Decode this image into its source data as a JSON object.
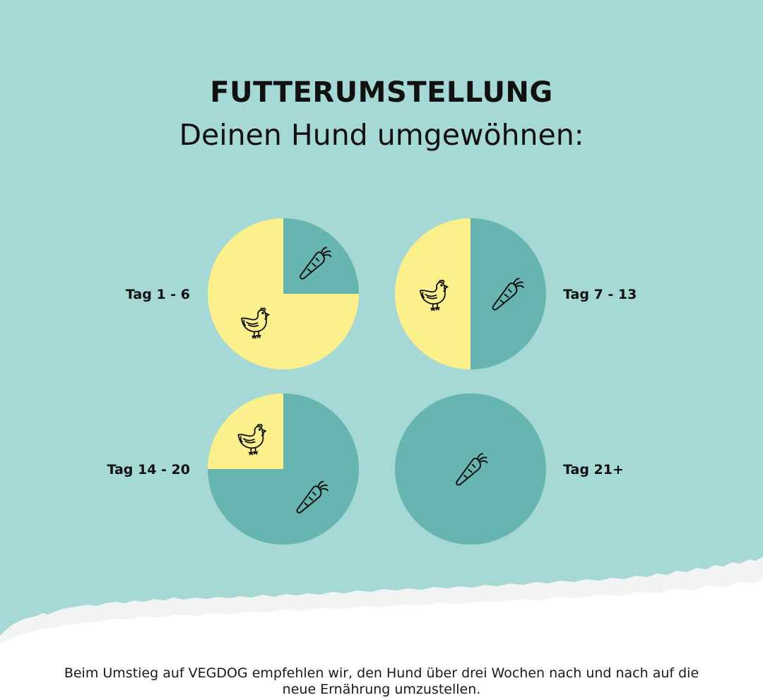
{
  "header": {
    "title": "FUTTERUMSTELLUNG",
    "subtitle": "Deinen Hund umgewöhnen:"
  },
  "colors": {
    "background": "#a6d8d5",
    "new_food": "#67b5b0",
    "old_food": "#fbf08c",
    "paper": "#ffffff"
  },
  "icons": {
    "new_food": "carrot-icon",
    "old_food": "chicken-icon"
  },
  "chart_data": {
    "type": "pie",
    "categories": [
      "Tag 1 - 6",
      "Tag 7 - 13",
      "Tag 14 - 20",
      "Tag 21+"
    ],
    "series": [
      {
        "values": [
          25,
          50,
          75,
          100
        ]
      },
      {
        "values": [
          75,
          50,
          25,
          0
        ]
      }
    ],
    "unit": "%"
  },
  "footer": {
    "text": "Beim Umstieg auf VEGDOG empfehlen wir, den Hund über drei Wochen nach und nach auf die neue Ernährung umzustellen."
  }
}
